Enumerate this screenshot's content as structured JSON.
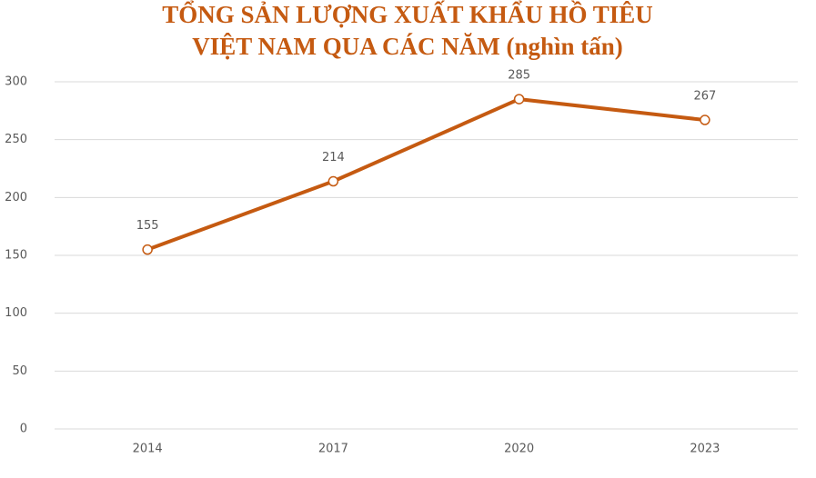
{
  "chart_data": {
    "type": "line",
    "title": [
      "TỔNG SẢN LƯỢNG XUẤT KHẨU HỒ TIÊU",
      "VIỆT NAM QUA CÁC NĂM (nghìn tấn)"
    ],
    "categories": [
      "2014",
      "2017",
      "2020",
      "2023"
    ],
    "values": [
      155,
      214,
      285,
      267
    ],
    "color": "#c55a11",
    "ylim": [
      0,
      300
    ],
    "yticks": [
      0,
      50,
      100,
      150,
      200,
      250,
      300
    ],
    "grid": true
  }
}
